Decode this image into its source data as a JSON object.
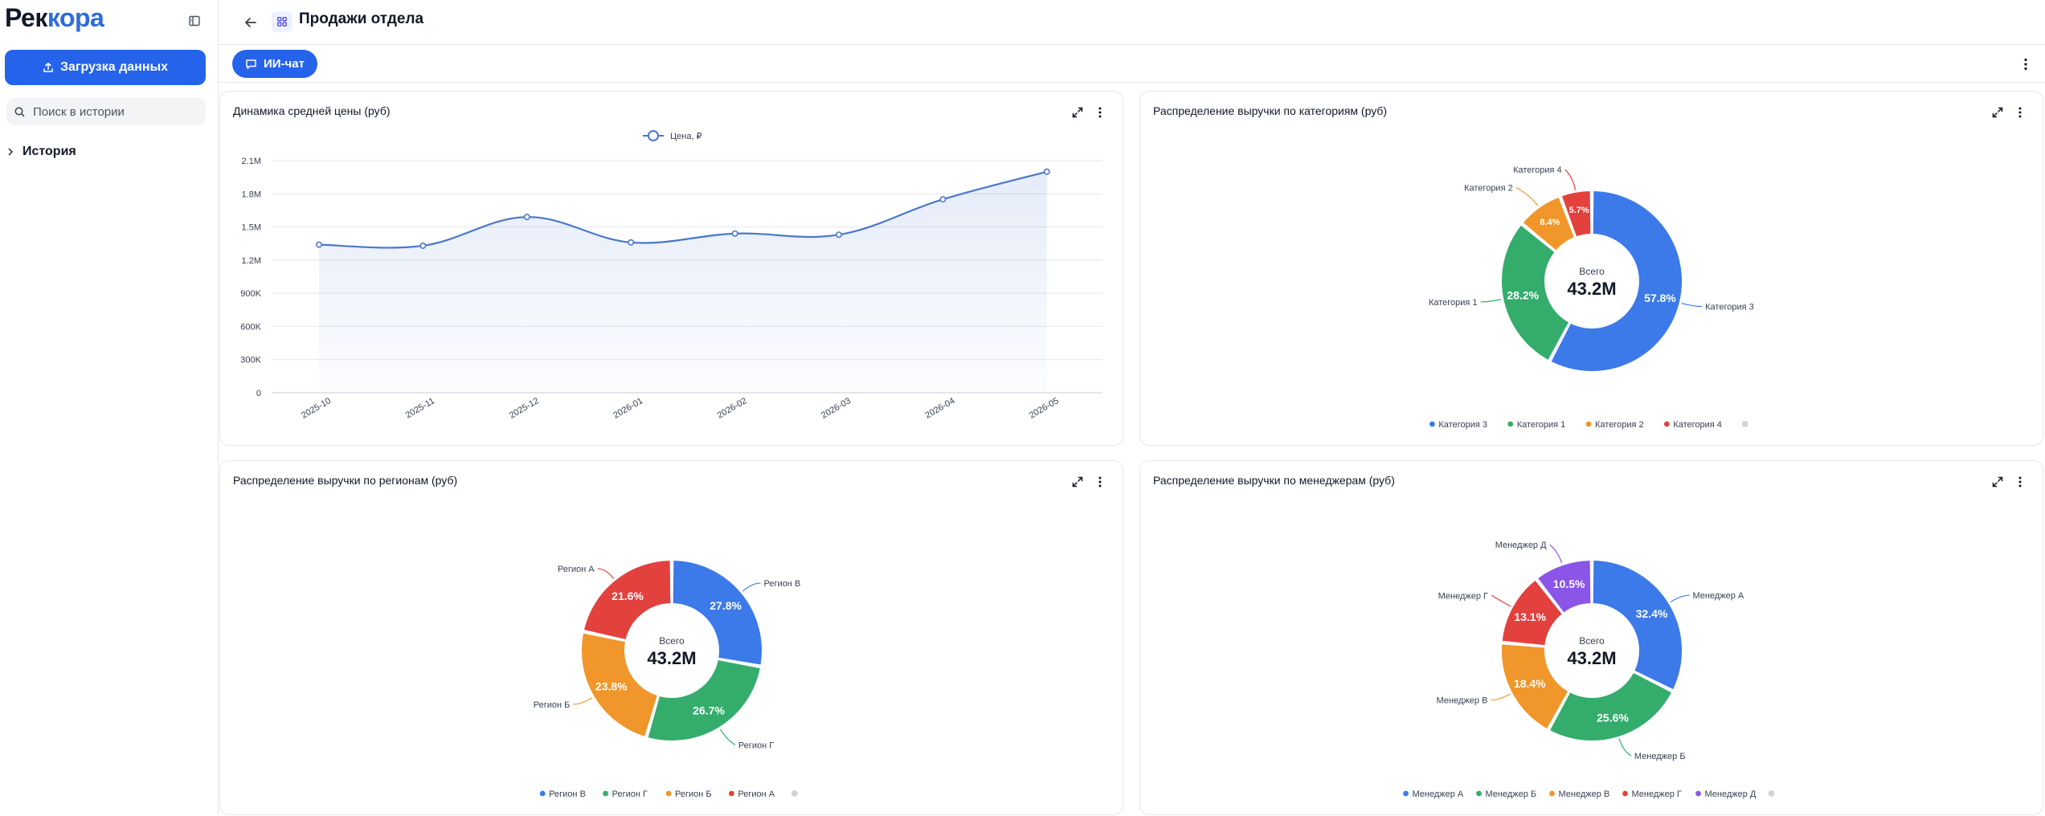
{
  "sidebar": {
    "logo_part1": "Рек",
    "logo_part2": "кора",
    "upload_label": "Загрузка данных",
    "search_placeholder": "Поиск в истории",
    "history_label": "История"
  },
  "header": {
    "title": "Продажи отдела"
  },
  "toolbar": {
    "ai_chat_label": "ИИ-чат"
  },
  "colors": {
    "accent": "#2563eb",
    "blue": "#3b7ae8",
    "green": "#34ad6c",
    "orange": "#f0962a",
    "red": "#e2413e",
    "purple": "#8b55e8",
    "line": "#4a78c9"
  },
  "chart_data": [
    {
      "type": "line",
      "title": "Динамика средней цены (руб)",
      "x": [
        "2025-10",
        "2025-11",
        "2025-12",
        "2026-01",
        "2026-02",
        "2026-03",
        "2026-04",
        "2026-05"
      ],
      "series": [
        {
          "name": "Цена, ₽",
          "values": [
            1340000,
            1330000,
            1590000,
            1360000,
            1440000,
            1430000,
            1750000,
            2000000
          ]
        }
      ],
      "yticks": [
        "0",
        "300K",
        "600K",
        "900K",
        "1.2M",
        "1.5M",
        "1.8M",
        "2.1M"
      ],
      "ylim": [
        0,
        2100000
      ],
      "legend": "top",
      "grid": true
    },
    {
      "type": "pie",
      "title": "Распределение выручки по категориям (руб)",
      "center_label": "Всего",
      "center_value": "43.2M",
      "slices": [
        {
          "name": "Категория 3",
          "value": 57.8,
          "label": "57.8%",
          "color": "#3b7ae8"
        },
        {
          "name": "Категория 1",
          "value": 28.2,
          "label": "28.2%",
          "color": "#34ad6c"
        },
        {
          "name": "Категория 2",
          "value": 8.4,
          "label": "8.4%",
          "color": "#f0962a"
        },
        {
          "name": "Категория 4",
          "value": 5.7,
          "label": "5.7%",
          "color": "#e2413e"
        }
      ],
      "legend": "bottom"
    },
    {
      "type": "pie",
      "title": "Распределение выручки по регионам (руб)",
      "center_label": "Всего",
      "center_value": "43.2M",
      "slices": [
        {
          "name": "Регион В",
          "value": 27.8,
          "label": "27.8%",
          "color": "#3b7ae8"
        },
        {
          "name": "Регион Г",
          "value": 26.7,
          "label": "26.7%",
          "color": "#34ad6c"
        },
        {
          "name": "Регион Б",
          "value": 23.8,
          "label": "23.8%",
          "color": "#f0962a"
        },
        {
          "name": "Регион А",
          "value": 21.6,
          "label": "21.6%",
          "color": "#e2413e"
        }
      ],
      "legend": "bottom"
    },
    {
      "type": "pie",
      "title": "Распределение выручки по менеджерам (руб)",
      "center_label": "Всего",
      "center_value": "43.2M",
      "slices": [
        {
          "name": "Менеджер А",
          "value": 32.4,
          "label": "32.4%",
          "color": "#3b7ae8"
        },
        {
          "name": "Менеджер Б",
          "value": 25.6,
          "label": "25.6%",
          "color": "#34ad6c"
        },
        {
          "name": "Менеджер В",
          "value": 18.4,
          "label": "18.4%",
          "color": "#f0962a"
        },
        {
          "name": "Менеджер Г",
          "value": 13.1,
          "label": "13.1%",
          "color": "#e2413e"
        },
        {
          "name": "Менеджер Д",
          "value": 10.5,
          "label": "10.5%",
          "color": "#8b55e8"
        }
      ],
      "legend": "bottom"
    }
  ]
}
